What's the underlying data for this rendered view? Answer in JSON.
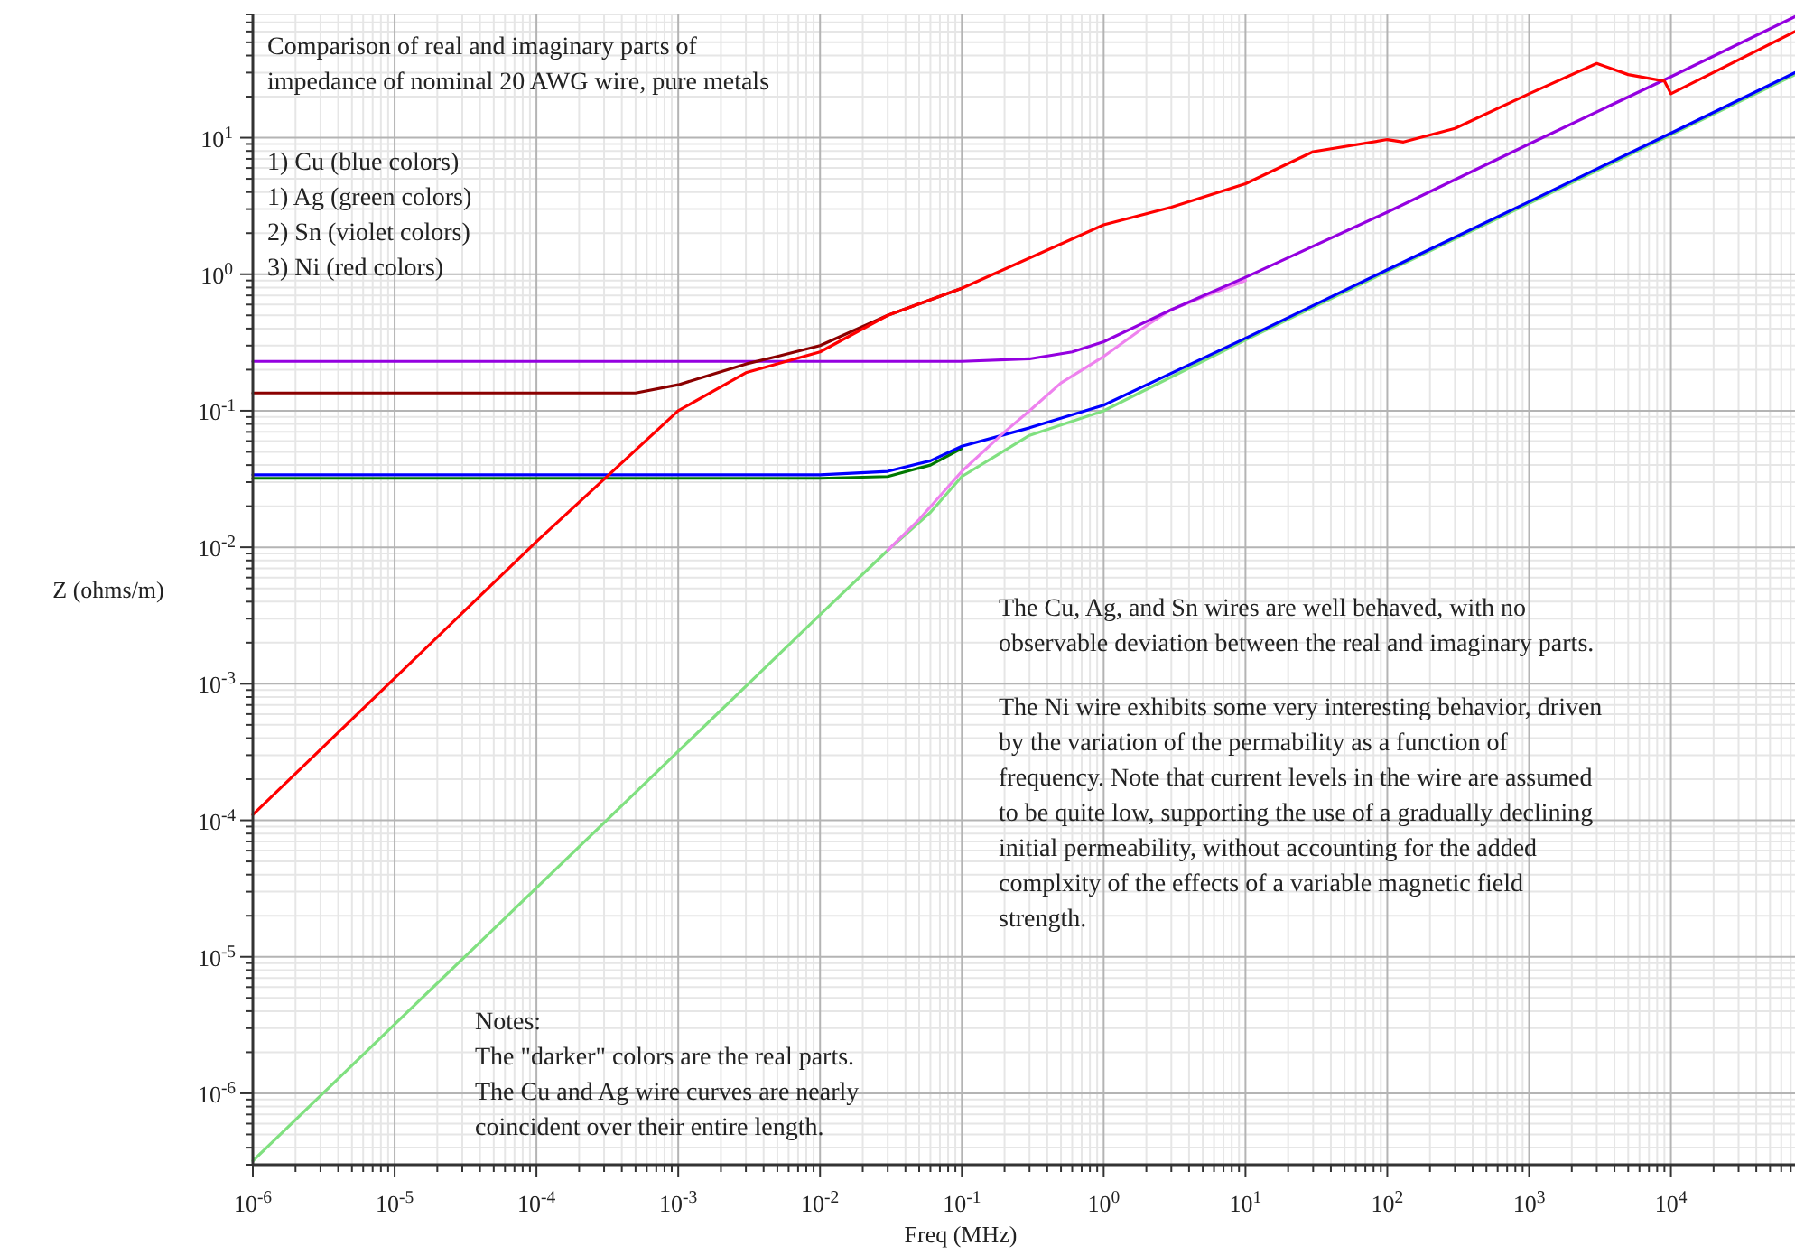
{
  "chart_data": {
    "type": "line",
    "xlabel": "Freq (MHz)",
    "ylabel": "Z (ohms/m)",
    "log": "xy",
    "grid": true,
    "line_style": "solid",
    "marker": "none",
    "xlim": [
      1e-06,
      75000
    ],
    "ylim": [
      3e-07,
      80
    ],
    "xticks": [
      {
        "value": 1e-06,
        "label": "10$^{-6}$"
      },
      {
        "value": 1e-05,
        "label": "10$^{-5}$"
      },
      {
        "value": 0.0001,
        "label": "10$^{-4}$"
      },
      {
        "value": 0.001,
        "label": "10$^{-3}$"
      },
      {
        "value": 0.01,
        "label": "10$^{-2}$"
      },
      {
        "value": 0.1,
        "label": "10$^{-1}$"
      },
      {
        "value": 1,
        "label": "10$^{0}$"
      },
      {
        "value": 10,
        "label": "10$^{1}$"
      },
      {
        "value": 100,
        "label": "10$^{2}$"
      },
      {
        "value": 1000,
        "label": "10$^{3}$"
      },
      {
        "value": 10000,
        "label": "10$^{4}$"
      }
    ],
    "yticks": [
      {
        "value": 1e-06,
        "label": "10$^{-6}$"
      },
      {
        "value": 1e-05,
        "label": "10$^{-5}$"
      },
      {
        "value": 0.0001,
        "label": "10$^{-4}$"
      },
      {
        "value": 0.001,
        "label": "10$^{-3}$"
      },
      {
        "value": 0.01,
        "label": "10$^{-2}$"
      },
      {
        "value": 0.1,
        "label": "10$^{-1}$"
      },
      {
        "value": 1,
        "label": "10$^{0}$"
      },
      {
        "value": 10,
        "label": "10$^{1}$"
      }
    ],
    "series": [
      {
        "color": "#007800",
        "x": [
          1e-06,
          0.01,
          0.03,
          0.06,
          0.1
        ],
        "values": [
          0.032,
          0.032,
          0.033,
          0.04,
          0.053
        ]
      },
      {
        "color": "#80e080",
        "x": [
          1e-06,
          0.01,
          0.03,
          0.06,
          0.1,
          0.3,
          1,
          10,
          100,
          1000,
          10000,
          75000
        ],
        "values": [
          3.2e-07,
          0.0032,
          0.0095,
          0.018,
          0.033,
          0.066,
          0.1,
          0.33,
          1.05,
          3.3,
          10.5,
          29
        ]
      },
      {
        "color": "#0000ff",
        "x": [
          1e-06,
          0.01,
          0.03,
          0.06,
          0.1,
          0.3,
          1,
          10,
          100,
          1000,
          10000,
          75000
        ],
        "values": [
          0.034,
          0.034,
          0.036,
          0.043,
          0.055,
          0.075,
          0.11,
          0.34,
          1.08,
          3.4,
          10.8,
          30
        ]
      },
      {
        "color": "#ee82ee",
        "x": [
          0.03,
          0.05,
          0.1,
          0.2,
          0.3,
          0.5,
          1,
          2,
          3,
          5,
          10
        ],
        "values": [
          0.0095,
          0.016,
          0.036,
          0.07,
          0.1,
          0.16,
          0.25,
          0.42,
          0.55,
          0.68,
          0.9
        ]
      },
      {
        "color": "#9400e0",
        "x": [
          1e-06,
          0.1,
          0.3,
          0.6,
          1,
          3,
          10,
          100,
          1000,
          10000,
          75000
        ],
        "values": [
          0.23,
          0.23,
          0.24,
          0.27,
          0.32,
          0.55,
          0.95,
          2.85,
          9,
          28,
          77
        ]
      },
      {
        "color": "#8b0000",
        "x": [
          1e-06,
          0.0005,
          0.001,
          0.003,
          0.005,
          0.01,
          0.03,
          0.1
        ],
        "values": [
          0.135,
          0.135,
          0.155,
          0.22,
          0.25,
          0.3,
          0.5,
          0.79
        ]
      },
      {
        "color": "#ff0000",
        "x": [
          1e-06,
          1e-05,
          0.0001,
          0.001,
          0.003,
          0.01,
          0.03,
          0.1,
          1,
          3,
          10,
          30,
          100,
          130,
          300,
          1000,
          3000,
          5000,
          9000,
          10000,
          75000
        ],
        "values": [
          0.00011,
          0.0011,
          0.011,
          0.1,
          0.19,
          0.27,
          0.5,
          0.79,
          2.3,
          3.1,
          4.6,
          7.9,
          9.7,
          9.3,
          11.7,
          21,
          35,
          29,
          26,
          21,
          60
        ]
      }
    ],
    "annotations": [
      "Comparison of real and imaginary parts of\nimpedance of nominal 20 AWG wire, pure metals",
      "1) Cu (blue colors)\n1) Ag (green colors)\n2) Sn (violet colors)\n3) Ni (red colors)",
      "The Cu, Ag, and Sn wires are well behaved, with no\nobservable deviation between the real and imaginary parts.",
      "The Ni wire exhibits some very interesting behavior, driven\nby the variation of the permability as a function of\nfrequency. Note that current levels in the wire are assumed\nto be quite low, supporting the use of a gradually declining\ninitial permeability, without accounting for the added\ncomplxity of the effects of a variable magnetic field\nstrength.",
      "Notes:\nThe \"darker\" colors are the real parts.\nThe Cu and Ag wire curves are nearly\ncoincident over their entire length."
    ]
  }
}
